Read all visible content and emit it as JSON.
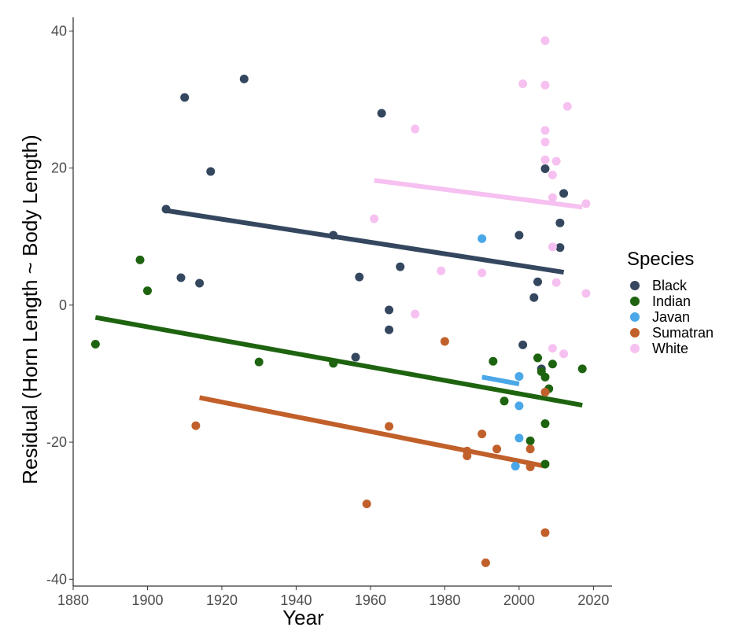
{
  "chart_data": {
    "type": "scatter",
    "title": "",
    "xlabel": "Year",
    "ylabel": "Residual (Horn Length ~ Body Length)",
    "xlim": [
      1880,
      2025
    ],
    "ylim": [
      -41,
      42
    ],
    "xticks": [
      1880,
      1900,
      1920,
      1940,
      1960,
      1980,
      2000,
      2020
    ],
    "yticks": [
      -40,
      -20,
      0,
      20,
      40
    ],
    "grid": false,
    "legend": {
      "title": "Species",
      "position": "right"
    },
    "series": [
      {
        "name": "Black",
        "color": "#34475f",
        "points": [
          [
            1905,
            14
          ],
          [
            1909,
            4
          ],
          [
            1910,
            30.3
          ],
          [
            1914,
            3.2
          ],
          [
            1917,
            19.5
          ],
          [
            1926,
            33
          ],
          [
            1950,
            10.2
          ],
          [
            1956,
            -7.6
          ],
          [
            1957,
            4.1
          ],
          [
            1963,
            28
          ],
          [
            1965,
            -0.7
          ],
          [
            1965,
            -3.6
          ],
          [
            1968,
            5.6
          ],
          [
            2000,
            10.2
          ],
          [
            2001,
            -5.8
          ],
          [
            2004,
            1.1
          ],
          [
            2005,
            3.4
          ],
          [
            2006,
            -9.3
          ],
          [
            2007,
            19.9
          ],
          [
            2011,
            12
          ],
          [
            2011,
            8.4
          ],
          [
            2012,
            16.3
          ]
        ],
        "trend": [
          [
            1905,
            13.8
          ],
          [
            2012,
            4.8
          ]
        ]
      },
      {
        "name": "Indian",
        "color": "#1e6410",
        "points": [
          [
            1886,
            -5.7
          ],
          [
            1898,
            6.6
          ],
          [
            1900,
            2.1
          ],
          [
            1930,
            -8.3
          ],
          [
            1950,
            -8.5
          ],
          [
            1993,
            -8.2
          ],
          [
            1996,
            -14
          ],
          [
            2003,
            -19.8
          ],
          [
            2005,
            -7.7
          ],
          [
            2006,
            -9.7
          ],
          [
            2007,
            -10.5
          ],
          [
            2007,
            -17.3
          ],
          [
            2007,
            -23.2
          ],
          [
            2008,
            -12.2
          ],
          [
            2009,
            -8.6
          ],
          [
            2017,
            -9.3
          ]
        ],
        "trend": [
          [
            1886,
            -1.8
          ],
          [
            2017,
            -14.6
          ]
        ]
      },
      {
        "name": "Javan",
        "color": "#4aa7e8",
        "points": [
          [
            1990,
            9.7
          ],
          [
            1999,
            -23.5
          ],
          [
            2000,
            -10.4
          ],
          [
            2000,
            -14.7
          ],
          [
            2000,
            -19.4
          ]
        ],
        "trend": [
          [
            1990,
            -10.5
          ],
          [
            2000,
            -11.5
          ]
        ]
      },
      {
        "name": "Sumatran",
        "color": "#c1602a",
        "points": [
          [
            1913,
            -17.6
          ],
          [
            1959,
            -29
          ],
          [
            1965,
            -17.7
          ],
          [
            1980,
            -5.3
          ],
          [
            1986,
            -21.3
          ],
          [
            1986,
            -22
          ],
          [
            1990,
            -18.8
          ],
          [
            1991,
            -37.6
          ],
          [
            1994,
            -21
          ],
          [
            2003,
            -21
          ],
          [
            2003,
            -23.6
          ],
          [
            2007,
            -12.7
          ],
          [
            2007,
            -33.2
          ]
        ],
        "trend": [
          [
            1914,
            -13.5
          ],
          [
            2007,
            -23.5
          ]
        ]
      },
      {
        "name": "White",
        "color": "#f6c1f0",
        "points": [
          [
            1961,
            12.6
          ],
          [
            1972,
            25.7
          ],
          [
            1972,
            -1.3
          ],
          [
            1979,
            5
          ],
          [
            1990,
            4.7
          ],
          [
            2001,
            32.3
          ],
          [
            2007,
            38.6
          ],
          [
            2007,
            32.1
          ],
          [
            2007,
            25.5
          ],
          [
            2007,
            23.8
          ],
          [
            2007,
            21.2
          ],
          [
            2009,
            19
          ],
          [
            2009,
            15.7
          ],
          [
            2009,
            8.5
          ],
          [
            2009,
            -6.3
          ],
          [
            2010,
            21
          ],
          [
            2010,
            3.3
          ],
          [
            2012,
            -7.1
          ],
          [
            2013,
            29
          ],
          [
            2018,
            14.8
          ],
          [
            2018,
            1.7
          ]
        ],
        "trend": [
          [
            1961,
            18.2
          ],
          [
            2017,
            14.3
          ]
        ]
      }
    ]
  }
}
